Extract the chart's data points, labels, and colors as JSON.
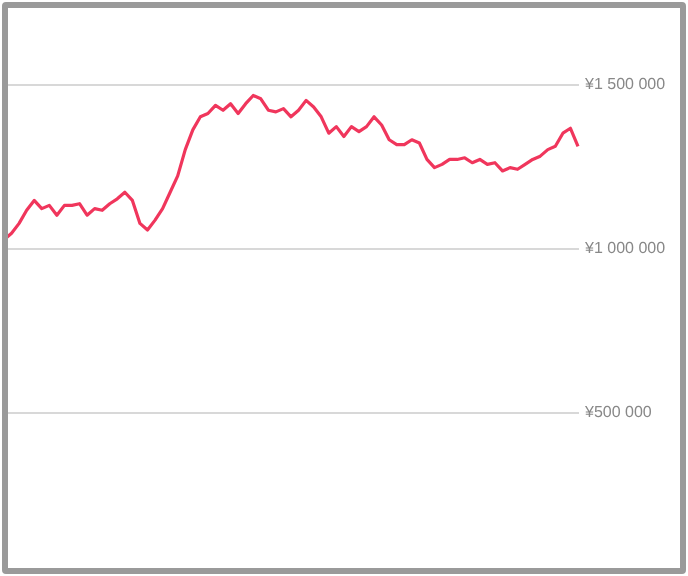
{
  "chart_data": {
    "type": "line",
    "categories": [
      null,
      null,
      null,
      null,
      null,
      null,
      null,
      null,
      null,
      null,
      null,
      null,
      null,
      null,
      null,
      null,
      null,
      null,
      null,
      null,
      null,
      null,
      null,
      null,
      null,
      null,
      null,
      null,
      null,
      null,
      null,
      null,
      null,
      null,
      null,
      null,
      null,
      null,
      null,
      null,
      null,
      null,
      null,
      null,
      null,
      null,
      null,
      null,
      null,
      null,
      null,
      null,
      null,
      null,
      null,
      null,
      null,
      null,
      null,
      null,
      null,
      null,
      null,
      null,
      null,
      null,
      null,
      null,
      null,
      null,
      null,
      null,
      null,
      null,
      null,
      null,
      null
    ],
    "series": [
      {
        "color": "#f0365c",
        "values": [
          1025000,
          1045000,
          1075000,
          1115000,
          1145000,
          1120000,
          1130000,
          1100000,
          1130000,
          1130000,
          1135000,
          1100000,
          1120000,
          1115000,
          1135000,
          1150000,
          1170000,
          1145000,
          1075000,
          1055000,
          1085000,
          1120000,
          1170000,
          1220000,
          1300000,
          1360000,
          1400000,
          1410000,
          1435000,
          1420000,
          1440000,
          1410000,
          1440000,
          1465000,
          1455000,
          1420000,
          1415000,
          1425000,
          1400000,
          1420000,
          1450000,
          1430000,
          1400000,
          1350000,
          1370000,
          1340000,
          1370000,
          1355000,
          1370000,
          1400000,
          1375000,
          1330000,
          1315000,
          1315000,
          1330000,
          1320000,
          1270000,
          1245000,
          1255000,
          1270000,
          1270000,
          1275000,
          1260000,
          1270000,
          1255000,
          1260000,
          1235000,
          1245000,
          1240000,
          1255000,
          1270000,
          1280000,
          1300000,
          1310000,
          1350000,
          1365000,
          1310000
        ]
      }
    ],
    "ylim": [
      500000,
      1500000
    ],
    "yticks": [
      {
        "value": 500000,
        "label": "¥500 000"
      },
      {
        "value": 1000000,
        "label": "¥1 000 000"
      },
      {
        "value": 1500000,
        "label": "¥1 500 000"
      }
    ],
    "grid": "y",
    "tick_labels": "y"
  }
}
